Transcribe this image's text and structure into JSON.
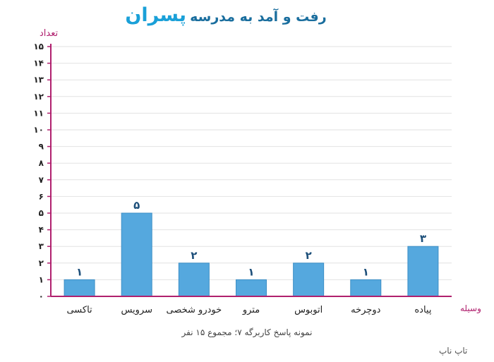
{
  "title": {
    "main": "رفت و آمد به مدرسه",
    "emphasis": "پسران"
  },
  "caption": "نمونه پاسخ کاربرگه ۷؛ مجموع ۱۵ نفر",
  "footer": "تاپ ناپ",
  "chart_data": {
    "type": "bar",
    "categories": [
      "تاکسی",
      "سرویس",
      "خودرو شخصی",
      "مترو",
      "اتوبوس",
      "دوچرخه",
      "پیاده"
    ],
    "values": [
      1,
      5,
      2,
      1,
      2,
      1,
      3
    ],
    "value_labels": [
      "۱",
      "۵",
      "۲",
      "۱",
      "۲",
      "۱",
      "۳"
    ],
    "ylabel": "تعداد",
    "xlabel": "وسیله",
    "ylim": [
      0,
      15
    ],
    "yticks": [
      "۰",
      "۱",
      "۲",
      "۳",
      "۴",
      "۵",
      "۶",
      "۷",
      "۸",
      "۹",
      "۱۰",
      "۱۱",
      "۱۲",
      "۱۳",
      "۱۴",
      "۱۵"
    ],
    "grid": true,
    "colors": {
      "bar": "#55a8de",
      "bar_stroke": "#3d8fc6",
      "axis": "#b0206e",
      "grid": "#e2e2e2",
      "value_label": "#1d4f7a"
    }
  }
}
